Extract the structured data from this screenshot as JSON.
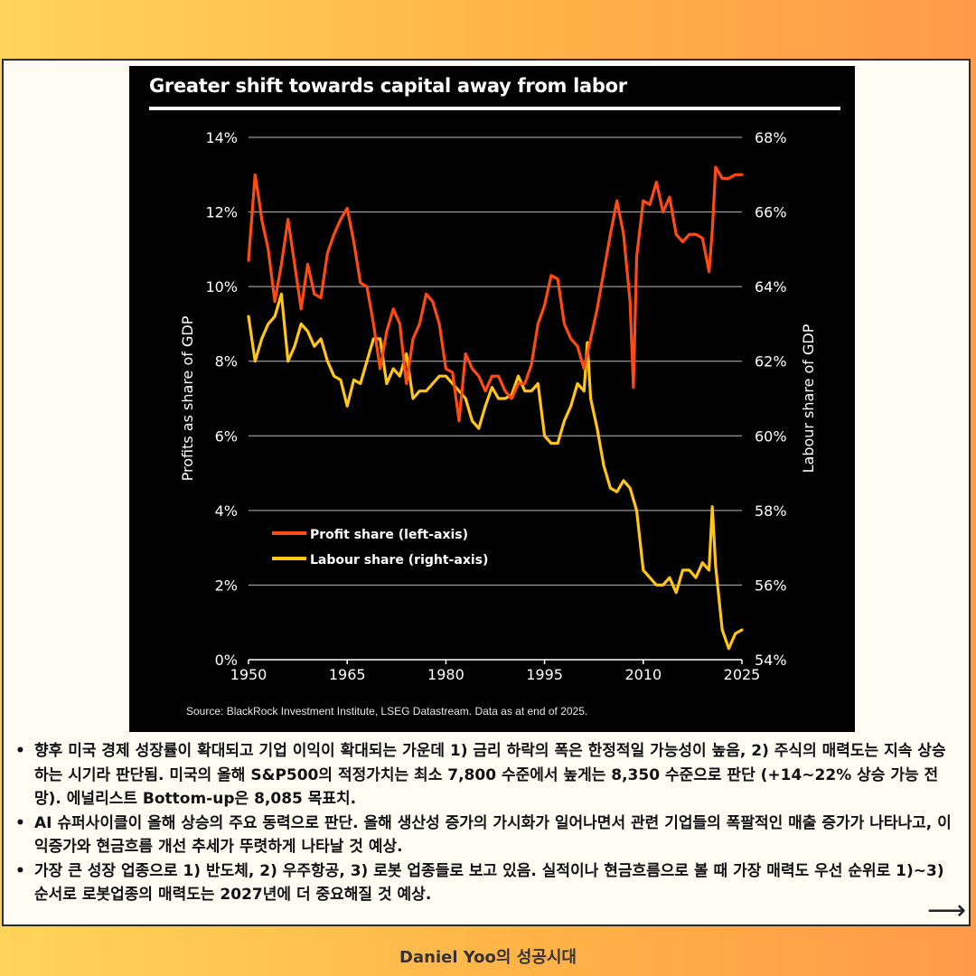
{
  "chart_data": {
    "type": "line",
    "title": "Greater shift towards capital away from labor",
    "ylabel_left": "Profits as share of GDP",
    "ylabel_right": "Labour share of GDP",
    "x_ticks": [
      "1950",
      "1965",
      "1980",
      "1995",
      "2010",
      "2025"
    ],
    "xlim": [
      1950,
      2025
    ],
    "y_left_ticks": [
      "0%",
      "2%",
      "4%",
      "6%",
      "8%",
      "10%",
      "12%",
      "14%"
    ],
    "y_left_lim": [
      0,
      14
    ],
    "y_right_ticks": [
      "54%",
      "56%",
      "58%",
      "60%",
      "62%",
      "64%",
      "66%",
      "68%"
    ],
    "y_right_lim": [
      54,
      68
    ],
    "grid": true,
    "legend_position": "lower-left",
    "series": [
      {
        "name": "Profit share (left-axis)",
        "axis": "left",
        "color": "#ff4a14",
        "x": [
          1950,
          1951,
          1951.7,
          1952,
          1953,
          1954,
          1955,
          1956,
          1957,
          1958,
          1959,
          1960,
          1961,
          1962,
          1963,
          1964,
          1965,
          1966,
          1967,
          1968,
          1969,
          1970,
          1971,
          1972,
          1973,
          1974,
          1975,
          1976,
          1977,
          1978,
          1979,
          1980,
          1981,
          1982,
          1983,
          1984,
          1985,
          1986,
          1987,
          1988,
          1989,
          1990,
          1991,
          1992,
          1993,
          1994,
          1995,
          1996,
          1997,
          1998,
          1999,
          2000,
          2001,
          2002,
          2003,
          2004,
          2005,
          2006,
          2007,
          2008,
          2008.5,
          2009,
          2010,
          2011,
          2012,
          2013,
          2014,
          2015,
          2016,
          2017,
          2018,
          2019,
          2020,
          2020.5,
          2021,
          2022,
          2023,
          2024,
          2025
        ],
        "values": [
          10.7,
          13.0,
          12.2,
          11.8,
          11.0,
          9.6,
          10.6,
          11.8,
          10.6,
          9.4,
          10.6,
          9.8,
          9.7,
          10.9,
          11.4,
          11.8,
          12.1,
          11.2,
          10.1,
          10.0,
          9.0,
          7.8,
          8.8,
          9.4,
          9.0,
          7.4,
          8.6,
          9.0,
          9.8,
          9.6,
          9.0,
          7.8,
          7.7,
          6.4,
          8.2,
          7.8,
          7.6,
          7.2,
          7.6,
          7.6,
          7.2,
          7.0,
          7.4,
          7.4,
          7.9,
          9.0,
          9.5,
          10.3,
          10.2,
          9.0,
          8.6,
          8.4,
          7.8,
          8.6,
          9.4,
          10.4,
          11.4,
          12.3,
          11.4,
          9.6,
          7.3,
          10.8,
          12.3,
          12.2,
          12.8,
          12.0,
          12.4,
          11.4,
          11.2,
          11.4,
          11.4,
          11.3,
          10.4,
          11.5,
          13.2,
          12.9,
          12.9,
          13.0,
          13.0
        ]
      },
      {
        "name": "Labour share (right-axis)",
        "axis": "right",
        "color": "#ffc617",
        "x": [
          1950,
          1951,
          1952,
          1953,
          1954,
          1955,
          1956,
          1957,
          1958,
          1959,
          1960,
          1961,
          1962,
          1963,
          1964,
          1965,
          1966,
          1967,
          1968,
          1969,
          1970,
          1971,
          1972,
          1973,
          1974,
          1975,
          1976,
          1977,
          1978,
          1979,
          1980,
          1981,
          1982,
          1983,
          1984,
          1985,
          1986,
          1987,
          1988,
          1989,
          1990,
          1991,
          1992,
          1993,
          1994,
          1995,
          1996,
          1997,
          1998,
          1999,
          2000,
          2001,
          2001.5,
          2002,
          2003,
          2004,
          2005,
          2006,
          2007,
          2008,
          2009,
          2010,
          2011,
          2012,
          2013,
          2014,
          2015,
          2016,
          2017,
          2018,
          2019,
          2020,
          2020.5,
          2021,
          2022,
          2023,
          2024,
          2025
        ],
        "values": [
          63.2,
          62.0,
          62.6,
          63.0,
          63.2,
          63.8,
          62.0,
          62.4,
          63.0,
          62.8,
          62.4,
          62.6,
          62.0,
          61.6,
          61.5,
          60.8,
          61.5,
          61.4,
          62.0,
          62.6,
          62.6,
          61.4,
          61.8,
          61.6,
          62.2,
          61.0,
          61.2,
          61.2,
          61.4,
          61.6,
          61.6,
          61.4,
          61.2,
          61.0,
          60.4,
          60.2,
          60.8,
          61.3,
          61.0,
          61.0,
          61.1,
          61.6,
          61.2,
          61.2,
          61.4,
          60.0,
          59.8,
          59.8,
          60.4,
          60.8,
          61.4,
          61.2,
          62.5,
          61.0,
          60.2,
          59.2,
          58.6,
          58.5,
          58.8,
          58.6,
          58.0,
          56.4,
          56.2,
          56.0,
          56.0,
          56.2,
          55.8,
          56.4,
          56.4,
          56.2,
          56.6,
          56.4,
          58.1,
          56.5,
          54.8,
          54.3,
          54.7,
          54.8
        ]
      }
    ]
  },
  "source": "Source: BlackRock Investment Institute, LSEG Datastream. Data as at end of 2025.",
  "bullets": [
    "향후 미국 경제 성장률이 확대되고 기업 이익이 확대되는 가운데 1) 금리 하락의 폭은 한정적일 가능성이 높음, 2) 주식의 매력도는 지속 상승하는 시기라 판단됨. 미국의 올해 S&P500의 적정가치는 최소 7,800 수준에서 높게는 8,350 수준으로 판단 (+14~22% 상승 가능 전망). 에널리스트 Bottom-up은 8,085 목표치.",
    "AI 슈퍼사이클이 올해 상승의 주요 동력으로 판단. 올해 생산성 증가의 가시화가 일어나면서 관련 기업들의 폭팔적인 매출 증가가 나타나고, 이익증가와 현금흐름 개선 추세가 뚜렷하게 나타날 것 예상.",
    "가장 큰 성장 업종으로 1) 반도체, 2) 우주항공, 3) 로봇 업종들로 보고 있음. 실적이나 현금흐름으로 볼 때 가장 매력도 우선 순위로 1)~3) 순서로 로봇업종의 매력도는 2027년에 더 중요해질 것 예상."
  ],
  "bullet_marker": "•",
  "next_icon": "right-arrow-icon",
  "footer": "Daniel Yoo의 성공시대"
}
